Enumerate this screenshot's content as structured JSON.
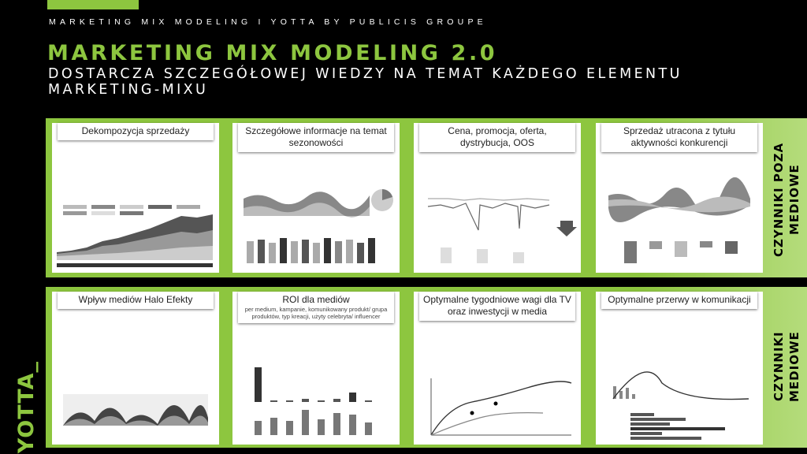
{
  "header": {
    "kicker": "MARKETING MIX MODELING I YOTTA BY PUBLICIS GROUPE",
    "title": "MARKETING MIX MODELING 2.0",
    "subtitle": "DOSTARCZA SZCZEGÓŁOWEJ WIEDZY NA TEMAT KAŻDEGO ELEMENTU MARKETING-MIXU"
  },
  "sections": {
    "top_label": "CZYNNIKI POZA MEDIOWE",
    "bottom_label": "CZYNNIKI MEDIOWE"
  },
  "cards_top": [
    {
      "title": "Dekompozycja sprzedaży"
    },
    {
      "title": "Szczegółowe informacje na temat sezonowości"
    },
    {
      "title": "Cena, promocja, oferta, dystrybucja, OOS"
    },
    {
      "title": "Sprzedaż utracona z tytułu aktywności konkurencji"
    }
  ],
  "cards_bottom": [
    {
      "title": "Wpływ mediów Halo Efekty"
    },
    {
      "title": "ROI dla mediów",
      "subtitle": "per medium, kampanie, komunikowany produkt/ grupa produktów, typ kreacji, użyty celebryta/ influencer"
    },
    {
      "title": "Optymalne tygodniowe wagi dla TV oraz inwestycji w media"
    },
    {
      "title": "Optymalne przerwy w komunikacji"
    }
  ],
  "brand": {
    "logo": "YOTTA_",
    "accent": "#8dc63f"
  },
  "icons": [
    "arrow-down-icon"
  ]
}
